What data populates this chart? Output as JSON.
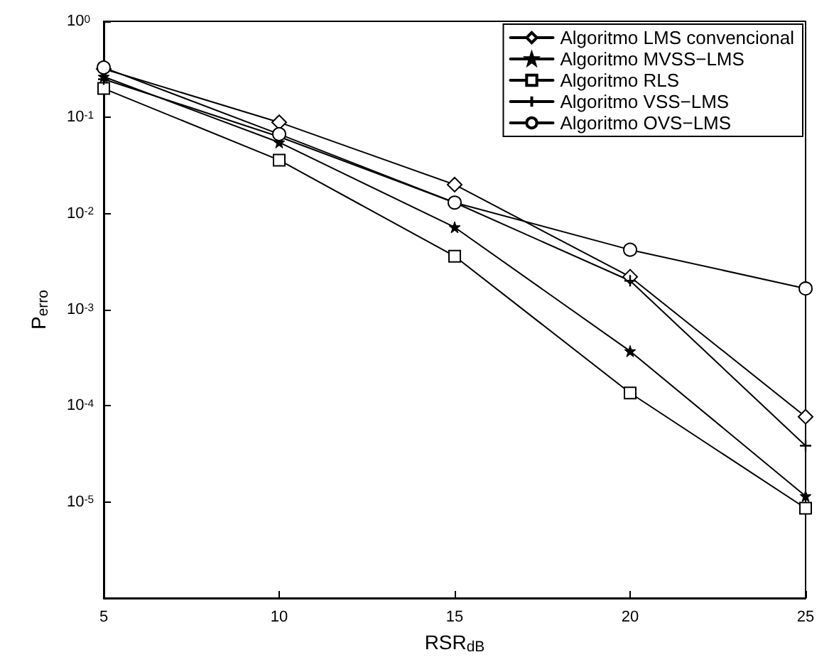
{
  "chart_data": {
    "type": "line",
    "xlabel": "RSR$_{dB}$",
    "ylabel": "P$_{erro}$",
    "x": [
      5,
      10,
      15,
      20,
      25
    ],
    "series": [
      {
        "name": "Algoritmo LMS convencional",
        "color": "#000000",
        "marker": "diamond",
        "values": [
          0.32,
          0.089,
          0.02,
          0.0022,
          7.7e-05
        ]
      },
      {
        "name": "Algoritmo MVSS−LMS",
        "color": "#000000",
        "marker": "star",
        "values": [
          0.265,
          0.055,
          0.0072,
          0.00037,
          1.15e-05
        ]
      },
      {
        "name": "Algoritmo RLS",
        "color": "#000000",
        "marker": "square",
        "values": [
          0.2,
          0.036,
          0.0036,
          0.000136,
          8.6e-06
        ]
      },
      {
        "name": "Algoritmo VSS−LMS",
        "color": "#000000",
        "marker": "cross",
        "values": [
          0.25,
          0.063,
          0.013,
          0.002,
          3.85e-05
        ]
      },
      {
        "name": "Algoritmo OVS−LMS",
        "color": "#000000",
        "marker": "circle",
        "values": [
          0.33,
          0.067,
          0.013,
          0.0042,
          0.00166
        ]
      }
    ],
    "log": "y",
    "grid": false,
    "legend": "top right",
    "line_style": "solid",
    "xlim": [
      5,
      25
    ],
    "xticks": [
      5,
      10,
      15,
      20,
      25
    ],
    "ylim": [
      1e-06,
      1
    ],
    "yticks": [
      {
        "value": 1e-06,
        "label": null
      },
      {
        "value": 1e-05,
        "label": "10$^{-5}$"
      },
      {
        "value": 0.0001,
        "label": "10$^{-4}$"
      },
      {
        "value": 0.001,
        "label": "10$^{-3}$"
      },
      {
        "value": 0.01,
        "label": "10$^{-2}$"
      },
      {
        "value": 0.1,
        "label": "10$^{-1}$"
      },
      {
        "value": 1,
        "label": "10$^{0}$"
      }
    ]
  }
}
